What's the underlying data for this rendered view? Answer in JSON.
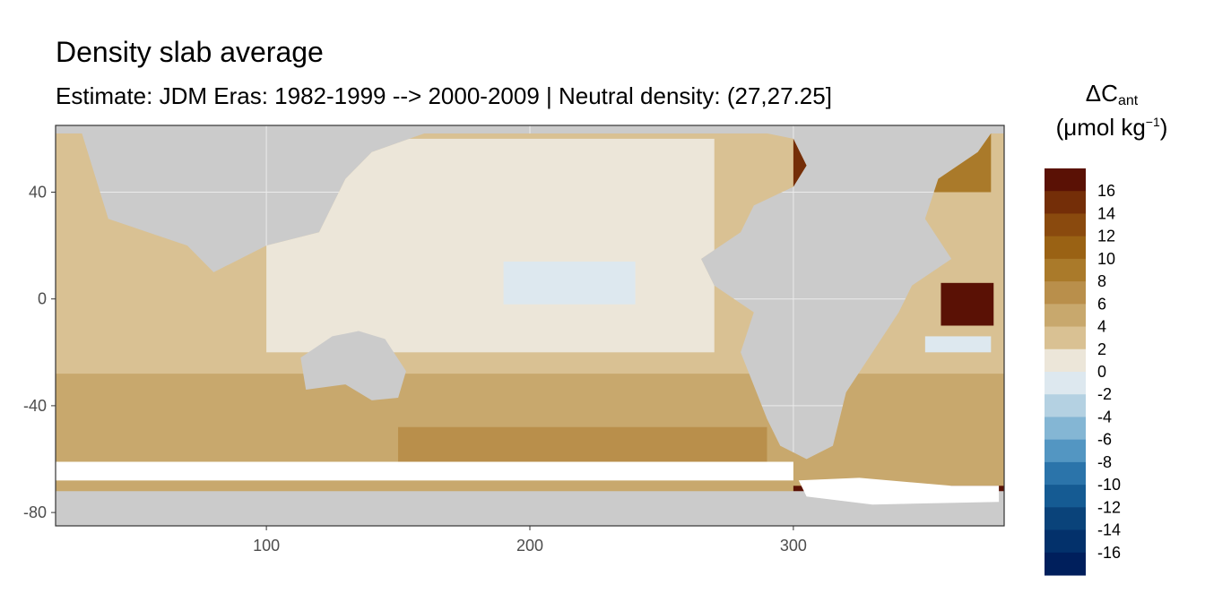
{
  "title": "Density slab average",
  "subtitle": "Estimate: JDM Eras: 1982-1999 --> 2000-2009 | Neutral density: (27,27.25]",
  "legend": {
    "title_main": "ΔC",
    "title_sub": "ant",
    "units_prefix": "(μmol kg",
    "units_sup": "−1",
    "units_suffix": ")",
    "labels": [
      "16",
      "14",
      "12",
      "10",
      "8",
      "6",
      "4",
      "2",
      "0",
      "-2",
      "-4",
      "-6",
      "-8",
      "-10",
      "-12",
      "-14",
      "-16"
    ],
    "colors": [
      "#5a1105",
      "#742e08",
      "#8a4a0e",
      "#9a6214",
      "#aa7a2a",
      "#b98f4b",
      "#c8a86d",
      "#d9c193",
      "#ece6d9",
      "#dde8ef",
      "#b4d1e2",
      "#84b6d4",
      "#5396c2",
      "#2b74aa",
      "#155b93",
      "#0a437a",
      "#03316b",
      "#001f5c"
    ]
  },
  "colors": {
    "land": "#cbcbcb",
    "ice_or_missing": "#ffffff",
    "panel_border": "#333333",
    "gridline": "#ebebeb"
  },
  "chart_data": {
    "type": "heatmap",
    "variable": "ΔCant",
    "x_ticks": [
      "100",
      "200",
      "300"
    ],
    "y_ticks": [
      "40",
      "0",
      "-40",
      "-80"
    ],
    "xlim": [
      20,
      380
    ],
    "ylim": [
      -85,
      65
    ],
    "regions": [
      {
        "value": 2.5,
        "lon": [
          20,
          380
        ],
        "lat": [
          -80,
          62
        ]
      },
      {
        "value": 0.5,
        "lon": [
          100,
          270
        ],
        "lat": [
          -20,
          60
        ]
      },
      {
        "value": 5,
        "lon": [
          20,
          380
        ],
        "lat": [
          -78,
          -28
        ]
      },
      {
        "value": 7,
        "lon": [
          150,
          290
        ],
        "lat": [
          -62,
          -48
        ]
      },
      {
        "value": -1,
        "lon": [
          190,
          240
        ],
        "lat": [
          -2,
          14
        ]
      },
      {
        "value": -0.5,
        "lon": [
          350,
          375
        ],
        "lat": [
          -20,
          -14
        ]
      },
      {
        "value": 9,
        "lon": [
          330,
          375
        ],
        "lat": [
          40,
          62
        ]
      },
      {
        "value": 16,
        "lon": [
          300,
          330
        ],
        "lat": [
          40,
          62
        ]
      },
      {
        "value": 17,
        "lon": [
          356,
          376
        ],
        "lat": [
          -10,
          6
        ]
      },
      {
        "value": 17,
        "lon": [
          300,
          380
        ],
        "lat": [
          -78,
          -70
        ]
      }
    ]
  }
}
